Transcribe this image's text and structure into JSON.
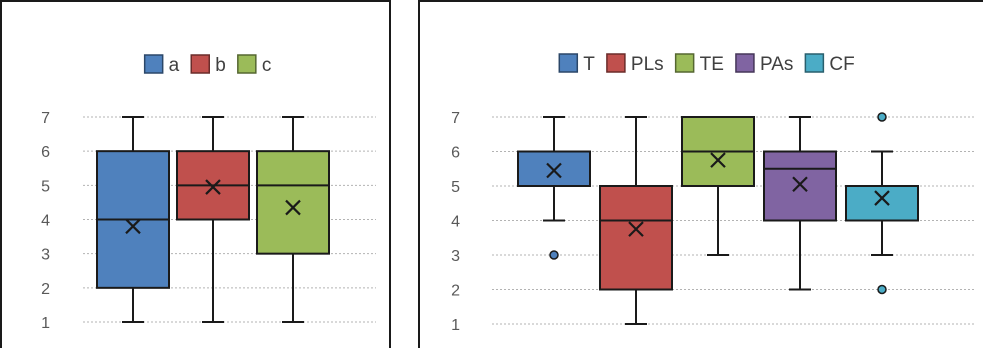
{
  "chart_data": [
    {
      "type": "box",
      "ylim": [
        1,
        7
      ],
      "y_ticks": [
        1,
        2,
        3,
        4,
        5,
        6,
        7
      ],
      "legend_position": "top",
      "grid": true,
      "series": [
        {
          "name": "a",
          "color": "#4f81bd",
          "min": 1,
          "q1": 2,
          "median": 4,
          "q3": 6,
          "max": 7,
          "mean": 3.8,
          "outliers": []
        },
        {
          "name": "b",
          "color": "#c0504d",
          "min": 1,
          "q1": 4,
          "median": 5,
          "q3": 6,
          "max": 7,
          "mean": 4.95,
          "outliers": []
        },
        {
          "name": "c",
          "color": "#9bbb59",
          "min": 1,
          "q1": 3,
          "median": 5,
          "q3": 6,
          "max": 7,
          "mean": 4.35,
          "outliers": []
        }
      ]
    },
    {
      "type": "box",
      "ylim": [
        1,
        7
      ],
      "y_ticks": [
        1,
        2,
        3,
        4,
        5,
        6,
        7
      ],
      "legend_position": "top",
      "grid": true,
      "series": [
        {
          "name": "T",
          "color": "#4f81bd",
          "min": 4,
          "q1": 5,
          "median": 6,
          "q3": 6,
          "max": 7,
          "mean": 5.45,
          "outliers": [
            3
          ]
        },
        {
          "name": "PLs",
          "color": "#c0504d",
          "min": 1,
          "q1": 2,
          "median": 4,
          "q3": 5,
          "max": 7,
          "mean": 3.75,
          "outliers": []
        },
        {
          "name": "TE",
          "color": "#9bbb59",
          "min": 3,
          "q1": 5,
          "median": 6,
          "q3": 7,
          "max": 7,
          "mean": 5.75,
          "outliers": []
        },
        {
          "name": "PAs",
          "color": "#8064a2",
          "min": 2,
          "q1": 4,
          "median": 5.5,
          "q3": 6,
          "max": 7,
          "mean": 5.05,
          "outliers": []
        },
        {
          "name": "CF",
          "color": "#4bacc6",
          "min": 3,
          "q1": 4,
          "median": 5,
          "q3": 5,
          "max": 6,
          "mean": 4.65,
          "outliers": [
            7,
            2
          ]
        }
      ]
    }
  ]
}
